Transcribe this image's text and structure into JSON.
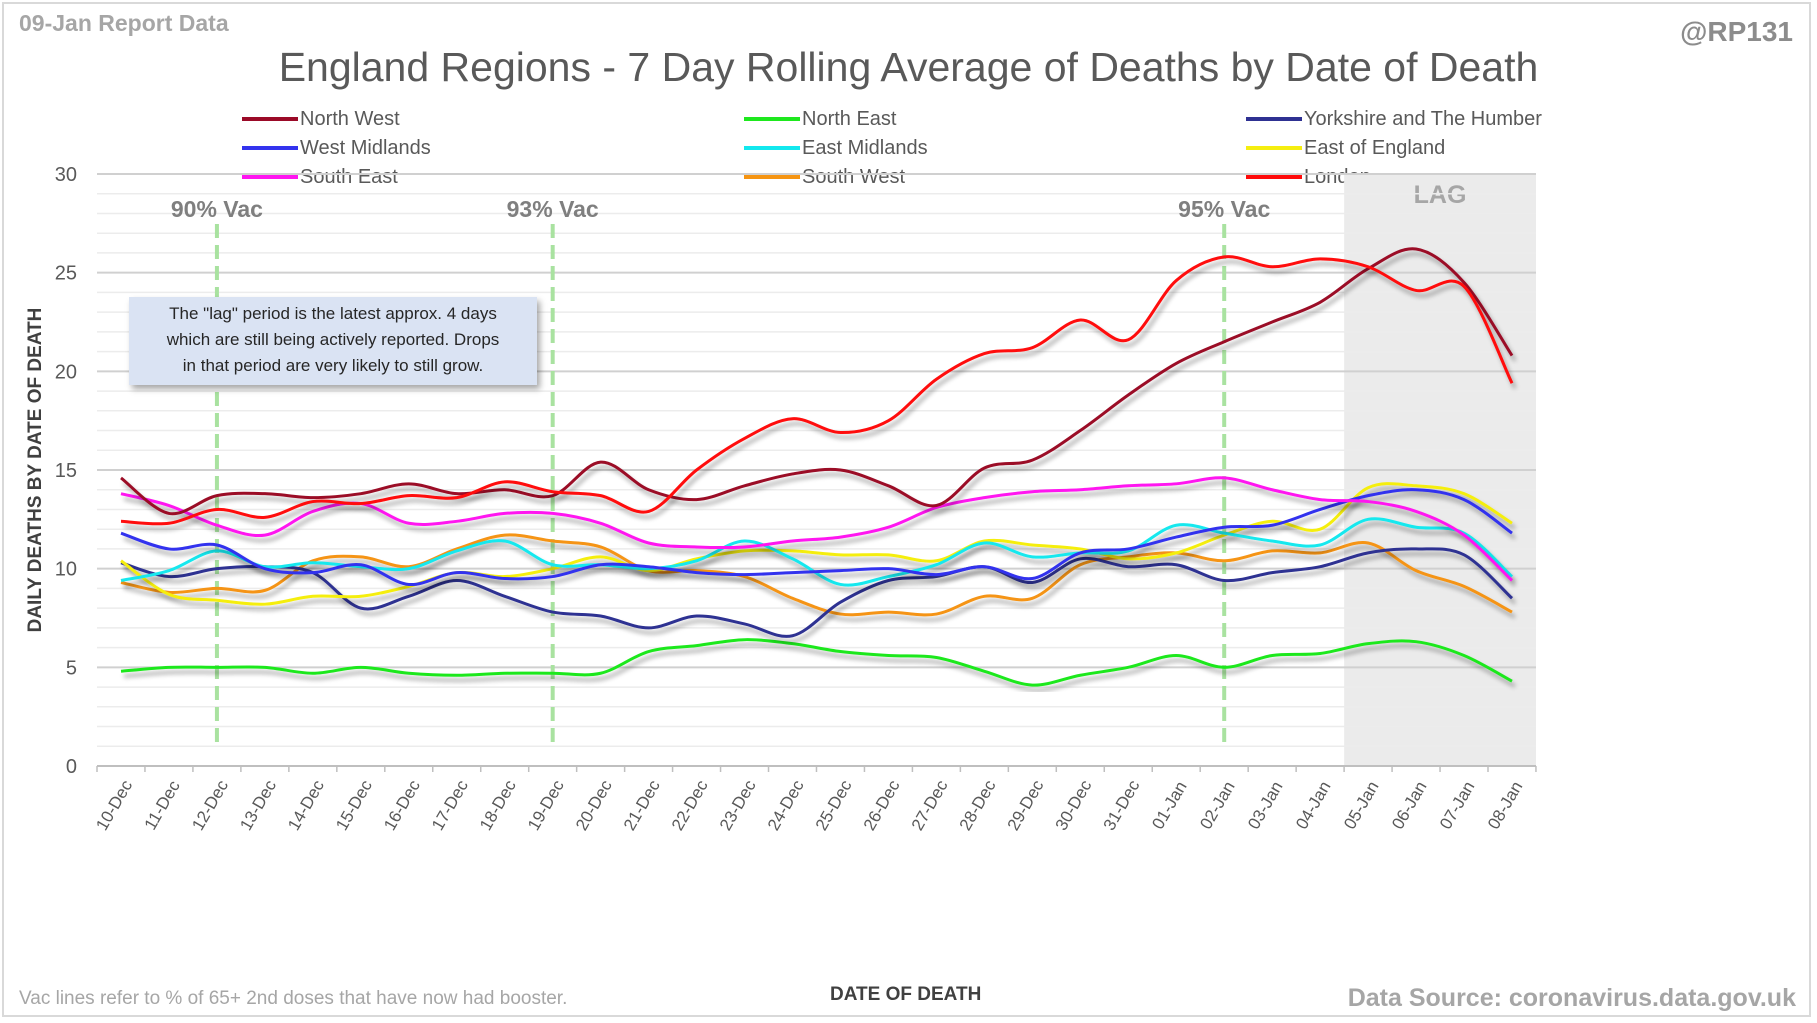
{
  "header": {
    "report_label": "09-Jan Report Data",
    "handle": "@RP131"
  },
  "footer": {
    "note": "Vac lines refer to % of 65+ 2nd doses that have now had booster.",
    "source": "Data Source: coronavirus.data.gov.uk"
  },
  "annotation_box": {
    "line1": "The \"lag\" period is the latest approx. 4 days",
    "line2": "which are still being actively reported.  Drops",
    "line3": "in that period are very likely to still grow."
  },
  "chart_data": {
    "type": "line",
    "title": "England Regions - 7 Day Rolling Average of Deaths by Date of Death",
    "xlabel": "DATE OF DEATH",
    "ylabel": "DAILY DEATHS BY DATE OF DEATH",
    "ylim": [
      0,
      30
    ],
    "yticks": [
      0,
      5,
      10,
      15,
      20,
      25,
      30
    ],
    "grid": true,
    "legend_position": "top",
    "x": [
      "10-Dec",
      "11-Dec",
      "12-Dec",
      "13-Dec",
      "14-Dec",
      "15-Dec",
      "16-Dec",
      "17-Dec",
      "18-Dec",
      "19-Dec",
      "20-Dec",
      "21-Dec",
      "22-Dec",
      "23-Dec",
      "24-Dec",
      "25-Dec",
      "26-Dec",
      "27-Dec",
      "28-Dec",
      "29-Dec",
      "30-Dec",
      "31-Dec",
      "01-Jan",
      "02-Jan",
      "03-Jan",
      "04-Jan",
      "05-Jan",
      "06-Jan",
      "07-Jan",
      "08-Jan"
    ],
    "series": [
      {
        "name": "North West",
        "color": "#9b0a28",
        "values": [
          14.6,
          12.8,
          13.7,
          13.8,
          13.6,
          13.8,
          14.3,
          13.8,
          14.0,
          13.7,
          15.4,
          14.0,
          13.5,
          14.2,
          14.8,
          15.0,
          14.2,
          13.2,
          15.1,
          15.5,
          17.0,
          18.8,
          20.4,
          21.5,
          22.5,
          23.5,
          25.2,
          26.2,
          24.5,
          20.8
        ]
      },
      {
        "name": "North East",
        "color": "#1ee81e",
        "values": [
          4.8,
          5.0,
          5.0,
          5.0,
          4.7,
          5.0,
          4.7,
          4.6,
          4.7,
          4.7,
          4.7,
          5.8,
          6.1,
          6.4,
          6.2,
          5.8,
          5.6,
          5.5,
          4.8,
          4.1,
          4.6,
          5.0,
          5.6,
          5.0,
          5.6,
          5.7,
          6.2,
          6.3,
          5.6,
          4.3
        ]
      },
      {
        "name": "Yorkshire and The Humber",
        "color": "#2e3192",
        "values": [
          10.3,
          9.6,
          10.0,
          10.1,
          9.8,
          8.0,
          8.6,
          9.4,
          8.6,
          7.8,
          7.6,
          7.0,
          7.6,
          7.2,
          6.6,
          8.3,
          9.4,
          9.6,
          10.1,
          9.3,
          10.5,
          10.1,
          10.2,
          9.4,
          9.8,
          10.1,
          10.8,
          11.0,
          10.7,
          8.5
        ]
      },
      {
        "name": "West Midlands",
        "color": "#3333ee",
        "values": [
          11.8,
          11.0,
          11.2,
          10.0,
          9.8,
          10.2,
          9.2,
          9.8,
          9.5,
          9.6,
          10.2,
          10.1,
          9.8,
          9.7,
          9.8,
          9.9,
          10.0,
          9.7,
          10.1,
          9.5,
          10.8,
          11.0,
          11.6,
          12.1,
          12.2,
          13.0,
          13.7,
          14.0,
          13.5,
          11.8
        ]
      },
      {
        "name": "East Midlands",
        "color": "#12e8ee",
        "values": [
          9.4,
          9.9,
          10.9,
          10.1,
          10.3,
          10.1,
          10.0,
          10.9,
          11.4,
          10.2,
          10.2,
          10.0,
          10.4,
          11.4,
          10.5,
          9.2,
          9.6,
          10.2,
          11.3,
          10.6,
          10.8,
          10.9,
          12.2,
          11.8,
          11.4,
          11.2,
          12.5,
          12.1,
          11.8,
          9.6
        ]
      },
      {
        "name": "East of England",
        "color": "#f5ee10",
        "values": [
          10.4,
          8.7,
          8.4,
          8.2,
          8.6,
          8.6,
          9.1,
          9.8,
          9.6,
          10.0,
          10.6,
          9.9,
          10.5,
          10.9,
          10.9,
          10.7,
          10.7,
          10.4,
          11.4,
          11.2,
          11.0,
          10.5,
          10.8,
          11.7,
          12.4,
          12.0,
          14.1,
          14.2,
          13.8,
          12.3
        ]
      },
      {
        "name": "South East",
        "color": "#ff16f0",
        "values": [
          13.8,
          13.2,
          12.2,
          11.7,
          12.9,
          13.3,
          12.3,
          12.4,
          12.8,
          12.8,
          12.3,
          11.3,
          11.1,
          11.1,
          11.4,
          11.6,
          12.1,
          13.1,
          13.6,
          13.9,
          14.0,
          14.2,
          14.3,
          14.6,
          14.0,
          13.5,
          13.4,
          12.9,
          11.7,
          9.4
        ]
      },
      {
        "name": "South West",
        "color": "#f59412",
        "values": [
          9.3,
          8.8,
          9.0,
          8.9,
          10.4,
          10.6,
          10.1,
          11.0,
          11.7,
          11.4,
          11.1,
          9.9,
          9.9,
          9.6,
          8.5,
          7.7,
          7.8,
          7.7,
          8.6,
          8.5,
          10.2,
          10.6,
          10.8,
          10.4,
          10.9,
          10.8,
          11.3,
          9.9,
          9.1,
          7.8
        ]
      },
      {
        "name": "London",
        "color": "#ff0a0a",
        "values": [
          12.4,
          12.3,
          13.0,
          12.6,
          13.4,
          13.3,
          13.7,
          13.6,
          14.4,
          13.9,
          13.7,
          12.9,
          15.0,
          16.6,
          17.6,
          16.9,
          17.5,
          19.6,
          20.9,
          21.2,
          22.6,
          21.6,
          24.6,
          25.8,
          25.3,
          25.7,
          25.3,
          24.1,
          24.3,
          19.4
        ]
      }
    ],
    "vertical_markers": [
      {
        "label": "90% Vac",
        "x": "12-Dec",
        "color": "#a9e2a0"
      },
      {
        "label": "93% Vac",
        "x": "19-Dec",
        "color": "#a9e2a0"
      },
      {
        "label": "95% Vac",
        "x": "02-Jan",
        "color": "#a9e2a0"
      }
    ],
    "shaded_region": {
      "label": "LAG",
      "from": "05-Jan",
      "to": "08-Jan",
      "color": "#ebebeb"
    }
  }
}
